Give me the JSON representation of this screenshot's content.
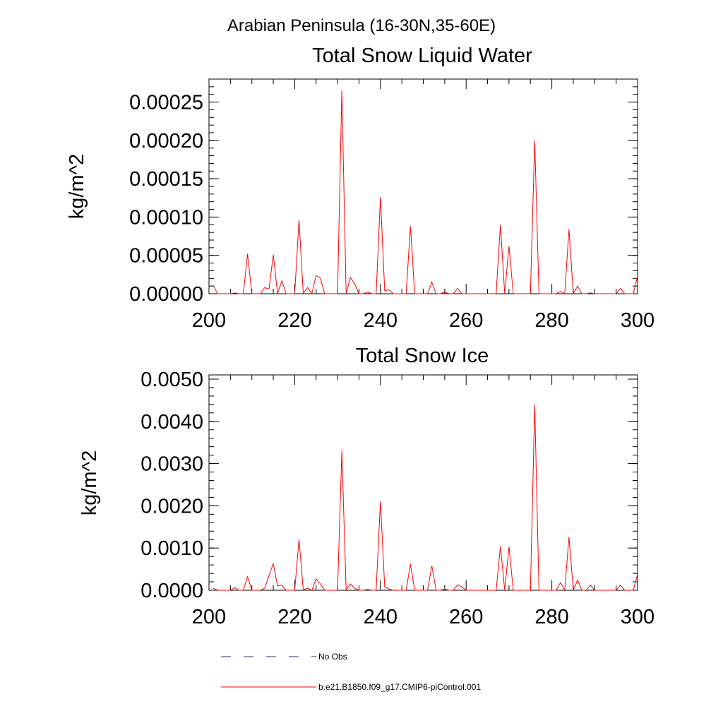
{
  "figure": {
    "main_title": "Arabian Peninsula (16-30N,35-60E)"
  },
  "legend": {
    "entries": [
      {
        "label": "No Obs",
        "style": "dashed",
        "color": "#2b2b6b"
      },
      {
        "label": "b.e21.B1850.f09_g17.CMIP6-piControl.001",
        "style": "solid",
        "color": "#ff0000"
      }
    ]
  },
  "chart_data": [
    {
      "type": "line",
      "title": "Total Snow Liquid Water",
      "xlabel": "",
      "ylabel": "kg/m^2",
      "xlim": [
        200,
        300
      ],
      "ylim": [
        0,
        0.00028
      ],
      "xticks": [
        200,
        220,
        240,
        260,
        280,
        300
      ],
      "xtick_labels": [
        "200",
        "220",
        "240",
        "260",
        "280",
        "300"
      ],
      "yticks": [
        0,
        5e-05,
        0.0001,
        0.00015,
        0.0002,
        0.00025
      ],
      "ytick_labels": [
        "0.00000",
        "0.00005",
        "0.00010",
        "0.00015",
        "0.00020",
        "0.00025"
      ],
      "grid": false,
      "series": [
        {
          "name": "b.e21.B1850.f09_g17.CMIP6-piControl.001",
          "color": "#ff0000",
          "x": [
            201,
            202,
            203,
            204,
            205,
            206,
            207,
            208,
            209,
            210,
            211,
            212,
            213,
            214,
            215,
            216,
            217,
            218,
            219,
            220,
            221,
            222,
            223,
            224,
            225,
            226,
            227,
            228,
            229,
            230,
            231,
            232,
            233,
            234,
            235,
            236,
            237,
            238,
            239,
            240,
            241,
            242,
            243,
            244,
            245,
            246,
            247,
            248,
            249,
            250,
            251,
            252,
            253,
            254,
            255,
            256,
            257,
            258,
            259,
            260,
            261,
            262,
            263,
            264,
            265,
            266,
            267,
            268,
            269,
            270,
            271,
            272,
            273,
            274,
            275,
            276,
            277,
            278,
            279,
            280,
            281,
            282,
            283,
            284,
            285,
            286,
            287,
            288,
            289,
            290,
            291,
            292,
            293,
            294,
            295,
            296,
            297,
            298,
            299,
            300
          ],
          "y": [
            1.1e-05,
            0,
            0,
            0,
            0,
            1e-06,
            0,
            0,
            5.2e-05,
            0,
            0,
            0,
            8e-06,
            6e-06,
            5.1e-05,
            0,
            1.7e-05,
            0,
            0,
            0,
            9.6e-05,
            0,
            8e-06,
            0,
            2.4e-05,
            2e-05,
            0,
            0,
            0,
            0,
            0.000265,
            0,
            2.1e-05,
            1.3e-05,
            0,
            0,
            2e-06,
            0,
            0,
            0.000126,
            4e-06,
            5e-06,
            0,
            0,
            0,
            0,
            8.8e-05,
            0,
            0,
            0,
            0,
            1.5e-05,
            0,
            0,
            2e-06,
            0,
            0,
            7e-06,
            0,
            0,
            0,
            0,
            0,
            0,
            0,
            0,
            0,
            9e-05,
            0,
            6.2e-05,
            0,
            0,
            0,
            0,
            0,
            0.0002,
            0,
            0,
            0,
            0,
            0,
            3e-06,
            0,
            8.4e-05,
            0,
            1e-05,
            0,
            0,
            1e-06,
            0,
            0,
            0,
            0,
            0,
            0,
            7e-06,
            0,
            0,
            0,
            2.3e-05
          ]
        }
      ]
    },
    {
      "type": "line",
      "title": "Total Snow Ice",
      "xlabel": "",
      "ylabel": "kg/m^2",
      "xlim": [
        200,
        300
      ],
      "ylim": [
        0,
        0.0051
      ],
      "xticks": [
        200,
        220,
        240,
        260,
        280,
        300
      ],
      "xtick_labels": [
        "200",
        "220",
        "240",
        "260",
        "280",
        "300"
      ],
      "yticks": [
        0,
        0.001,
        0.002,
        0.003,
        0.004,
        0.005
      ],
      "ytick_labels": [
        "0.0000",
        "0.0010",
        "0.0020",
        "0.0030",
        "0.0040",
        "0.0050"
      ],
      "grid": false,
      "series": [
        {
          "name": "b.e21.B1850.f09_g17.CMIP6-piControl.001",
          "color": "#ff0000",
          "x": [
            201,
            202,
            203,
            204,
            205,
            206,
            207,
            208,
            209,
            210,
            211,
            212,
            213,
            214,
            215,
            216,
            217,
            218,
            219,
            220,
            221,
            222,
            223,
            224,
            225,
            226,
            227,
            228,
            229,
            230,
            231,
            232,
            233,
            234,
            235,
            236,
            237,
            238,
            239,
            240,
            241,
            242,
            243,
            244,
            245,
            246,
            247,
            248,
            249,
            250,
            251,
            252,
            253,
            254,
            255,
            256,
            257,
            258,
            259,
            260,
            261,
            262,
            263,
            264,
            265,
            266,
            267,
            268,
            269,
            270,
            271,
            272,
            273,
            274,
            275,
            276,
            277,
            278,
            279,
            280,
            281,
            282,
            283,
            284,
            285,
            286,
            287,
            288,
            289,
            290,
            291,
            292,
            293,
            294,
            295,
            296,
            297,
            298,
            299,
            300
          ],
          "y": [
            5e-05,
            0,
            0,
            0,
            0,
            6e-05,
            0,
            0,
            0.00032,
            0,
            0,
            0,
            5e-05,
            0.00035,
            0.00063,
            0.0001,
            0.00012,
            0,
            0,
            0,
            0.0012,
            0,
            5e-05,
            0,
            0.00027,
            0.00015,
            0,
            0,
            0,
            0,
            0.0033,
            0,
            0.00015,
            5e-05,
            0,
            0,
            2e-05,
            0,
            0,
            0.0021,
            8e-05,
            3e-05,
            0,
            0,
            0,
            0,
            0.00062,
            0,
            0,
            0,
            0,
            0.00058,
            0,
            0,
            3e-05,
            0,
            0,
            0.00013,
            8e-05,
            0,
            0,
            0,
            0,
            0,
            0,
            0,
            0,
            0.00104,
            0,
            0.00103,
            0,
            0,
            0,
            0,
            0,
            0.0044,
            0,
            0,
            0,
            0,
            0,
            0.00018,
            0,
            0.00126,
            0,
            0.00024,
            0,
            0,
            0.00012,
            0,
            0,
            0,
            0,
            0,
            0,
            0.00012,
            0,
            0,
            0,
            0.00038
          ]
        }
      ]
    }
  ]
}
